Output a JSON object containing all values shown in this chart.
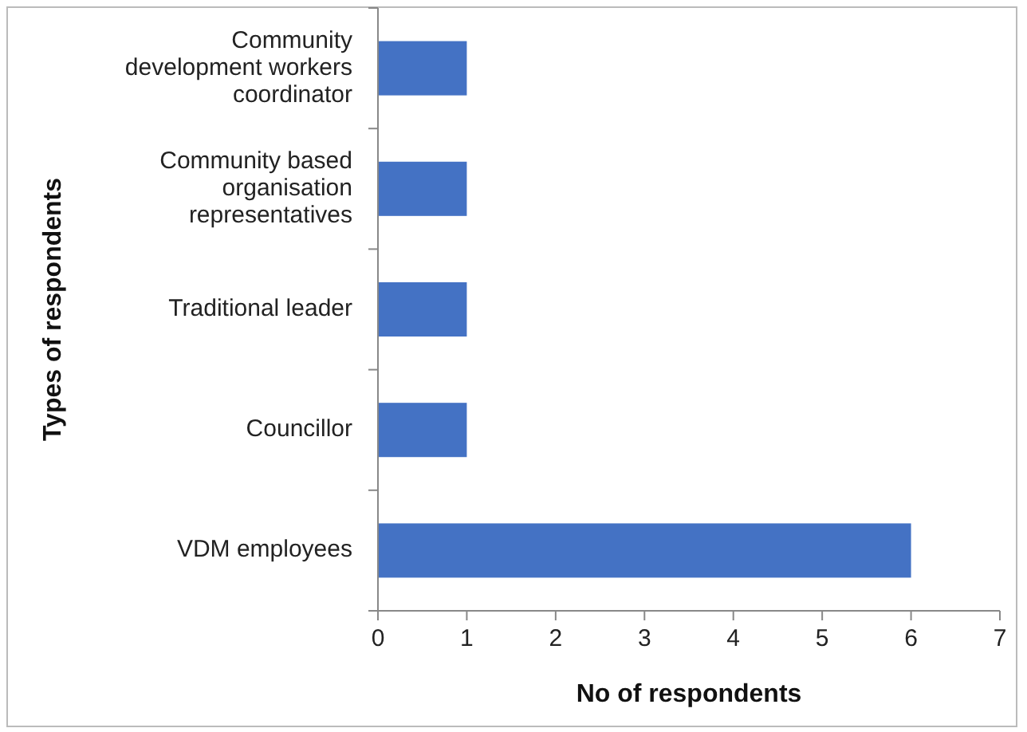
{
  "chart_data": {
    "type": "bar",
    "orientation": "horizontal",
    "categories": [
      "Community development workers coordinator",
      "Community based organisation representatives",
      "Traditional leader",
      "Councillor",
      "VDM employees"
    ],
    "values": [
      1,
      1,
      1,
      1,
      6
    ],
    "color": "#4472c4",
    "xlim": [
      0,
      7
    ],
    "xticks": [
      0,
      1,
      2,
      3,
      4,
      5,
      6,
      7
    ],
    "grid": false,
    "xlabel": "No of respondents",
    "ylabel": "Types of respondents"
  }
}
